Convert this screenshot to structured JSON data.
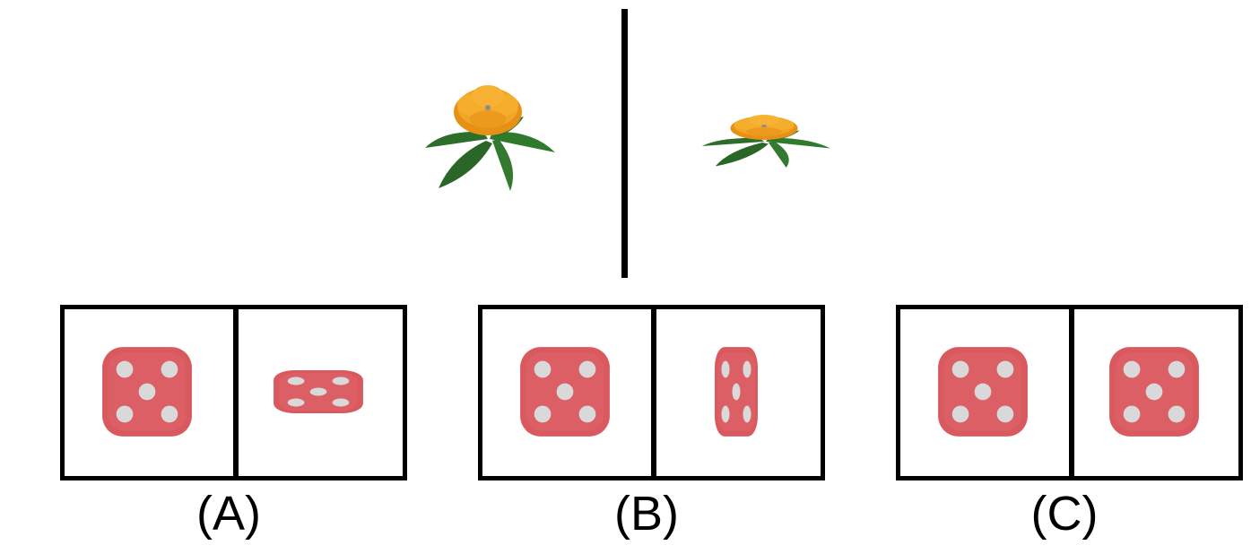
{
  "prompt": {
    "left_image": "flower-icon",
    "right_image": "flower-icon"
  },
  "options": [
    {
      "label": "(A)",
      "left_image": "die-five-face-icon",
      "right_image": "die-five-face-icon"
    },
    {
      "label": "(B)",
      "left_image": "die-five-face-icon",
      "right_image": "die-five-face-icon"
    },
    {
      "label": "(C)",
      "left_image": "die-five-face-icon",
      "right_image": "die-five-face-icon"
    }
  ],
  "colors": {
    "petal": "#f0a020",
    "leaf": "#2c6e2a",
    "die": "#d9595f",
    "pip": "#d9d9d9",
    "frame": "#000000"
  }
}
